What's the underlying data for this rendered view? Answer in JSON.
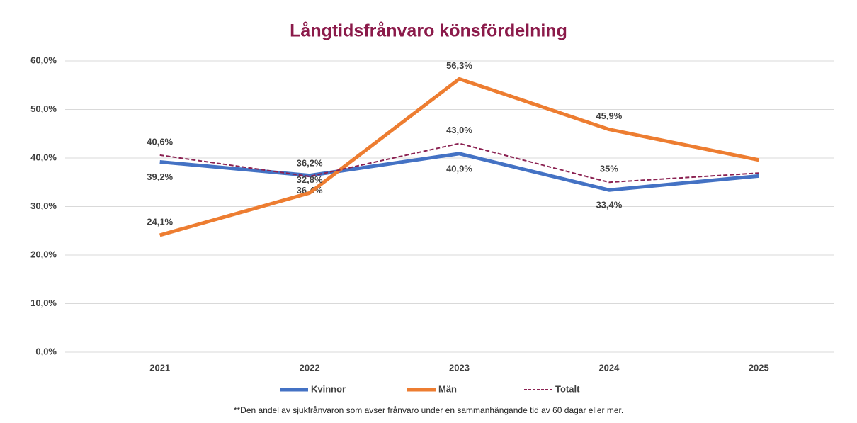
{
  "chart_data": {
    "type": "line",
    "title": "Långtidsfrånvaro könsfördelning",
    "categories": [
      "2021",
      "2022",
      "2023",
      "2024",
      "2025"
    ],
    "series": [
      {
        "name": "Kvinnor",
        "color": "#4472c4",
        "label_color": "#2e86c8",
        "width": 5,
        "dashed": false,
        "values": [
          39.2,
          36.4,
          40.9,
          33.4,
          36.3
        ],
        "value_labels": [
          "39,2%",
          "36,4%",
          "40,9%",
          "33,4%",
          null
        ]
      },
      {
        "name": "Män",
        "color": "#ed7d31",
        "label_color": "#d86a1a",
        "width": 5,
        "dashed": false,
        "values": [
          24.1,
          32.8,
          56.3,
          45.9,
          39.6
        ],
        "value_labels": [
          "24,1%",
          "32,8%",
          "56,3%",
          "45,9%",
          null
        ]
      },
      {
        "name": "Totalt",
        "color": "#8b2252",
        "label_color": "#8b2252",
        "width": 2,
        "dashed": true,
        "values": [
          40.6,
          36.2,
          43.0,
          35,
          36.9
        ],
        "value_labels": [
          "40,6%",
          "36,2%",
          "43,0%",
          "35%",
          null
        ]
      }
    ],
    "ylim": [
      0,
      60
    ],
    "yticks": [
      {
        "value": 0,
        "label": "0,0%"
      },
      {
        "value": 10,
        "label": "10,0%"
      },
      {
        "value": 20,
        "label": "20,0%"
      },
      {
        "value": 30,
        "label": "30,0%"
      },
      {
        "value": 40,
        "label": "40,0%"
      },
      {
        "value": 50,
        "label": "50,0%"
      },
      {
        "value": 60,
        "label": "60,0%"
      }
    ],
    "grid": true,
    "legend": "bottom",
    "footnote": "**Den andel av sjukfrånvaron som avser frånvaro under en sammanhängande tid av 60 dagar eller mer."
  }
}
